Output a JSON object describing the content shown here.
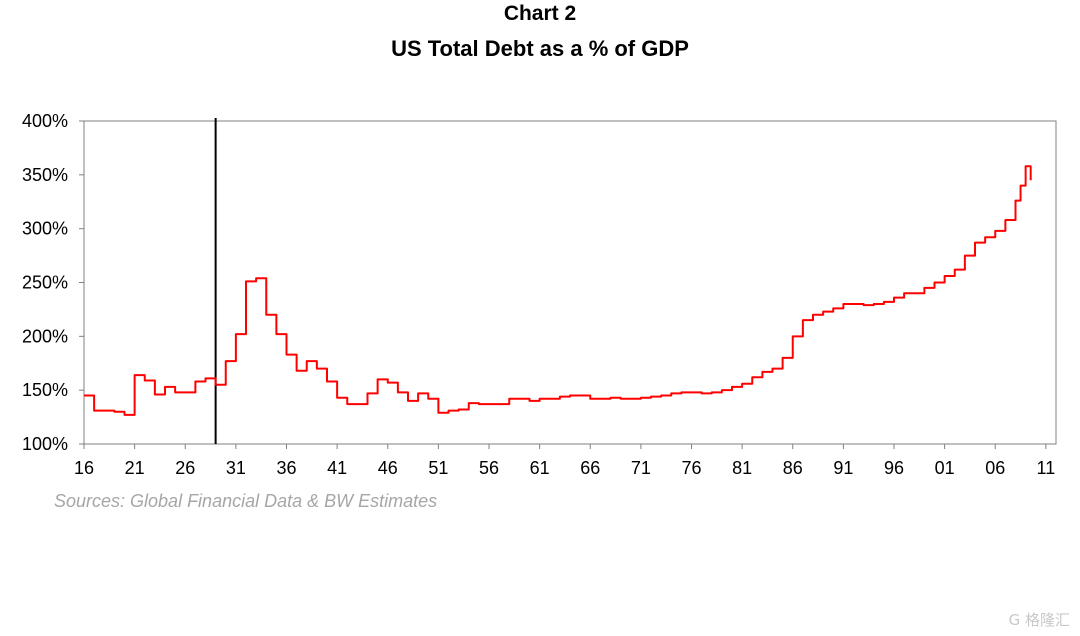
{
  "chart_data": {
    "type": "line",
    "title": "Chart 2",
    "subtitle": "US Total Debt as a % of GDP",
    "xlabel": "",
    "ylabel": "",
    "x_tick_labels": [
      "16",
      "21",
      "26",
      "31",
      "36",
      "41",
      "46",
      "51",
      "56",
      "61",
      "66",
      "71",
      "76",
      "81",
      "86",
      "91",
      "96",
      "01",
      "06",
      "11"
    ],
    "x_tick_years": [
      1916,
      1921,
      1926,
      1931,
      1936,
      1941,
      1946,
      1951,
      1956,
      1961,
      1966,
      1971,
      1976,
      1981,
      1986,
      1991,
      1996,
      2001,
      2006,
      2011
    ],
    "xlim": [
      1916,
      2012
    ],
    "ylim": [
      100,
      400
    ],
    "y_ticks": [
      100,
      150,
      200,
      250,
      300,
      350,
      400
    ],
    "y_tick_labels": [
      "100%",
      "150%",
      "200%",
      "250%",
      "300%",
      "350%",
      "400%"
    ],
    "grid": false,
    "vertical_marker_year": 1929,
    "series": [
      {
        "color": "#ff0000",
        "step": true,
        "x": [
          1916,
          1917,
          1919,
          1920,
          1921,
          1922,
          1923,
          1924,
          1925,
          1926,
          1927,
          1928,
          1929,
          1930,
          1931,
          1932,
          1933,
          1934,
          1935,
          1936,
          1937,
          1938,
          1939,
          1940,
          1941,
          1942,
          1943,
          1944,
          1945,
          1946,
          1947,
          1948,
          1949,
          1950,
          1951,
          1952,
          1953,
          1954,
          1955,
          1956,
          1957,
          1958,
          1959,
          1960,
          1961,
          1962,
          1963,
          1964,
          1965,
          1966,
          1967,
          1968,
          1969,
          1970,
          1971,
          1972,
          1973,
          1974,
          1975,
          1976,
          1977,
          1978,
          1979,
          1980,
          1981,
          1982,
          1983,
          1984,
          1985,
          1986,
          1987,
          1988,
          1989,
          1990,
          1991,
          1992,
          1993,
          1994,
          1995,
          1996,
          1997,
          1998,
          1999,
          2000,
          2001,
          2002,
          2003,
          2004,
          2005,
          2006,
          2007,
          2008,
          2008.5,
          2009,
          2009.5
        ],
        "y": [
          145,
          131,
          130,
          127,
          164,
          159,
          146,
          153,
          148,
          148,
          158,
          161,
          155,
          177,
          202,
          251,
          254,
          220,
          202,
          183,
          168,
          177,
          170,
          158,
          143,
          137,
          137,
          147,
          160,
          157,
          148,
          140,
          147,
          142,
          129,
          131,
          132,
          138,
          137,
          137,
          137,
          142,
          142,
          140,
          142,
          142,
          144,
          145,
          145,
          142,
          142,
          143,
          142,
          142,
          143,
          144,
          145,
          147,
          148,
          148,
          147,
          148,
          150,
          153,
          156,
          162,
          167,
          170,
          180,
          200,
          215,
          220,
          223,
          226,
          230,
          230,
          229,
          230,
          232,
          236,
          240,
          240,
          245,
          250,
          256,
          262,
          275,
          287,
          292,
          298,
          308,
          326,
          340,
          358,
          345
        ]
      }
    ]
  },
  "source": "Sources: Global Financial Data & BW Estimates",
  "watermark": "G 格隆汇"
}
